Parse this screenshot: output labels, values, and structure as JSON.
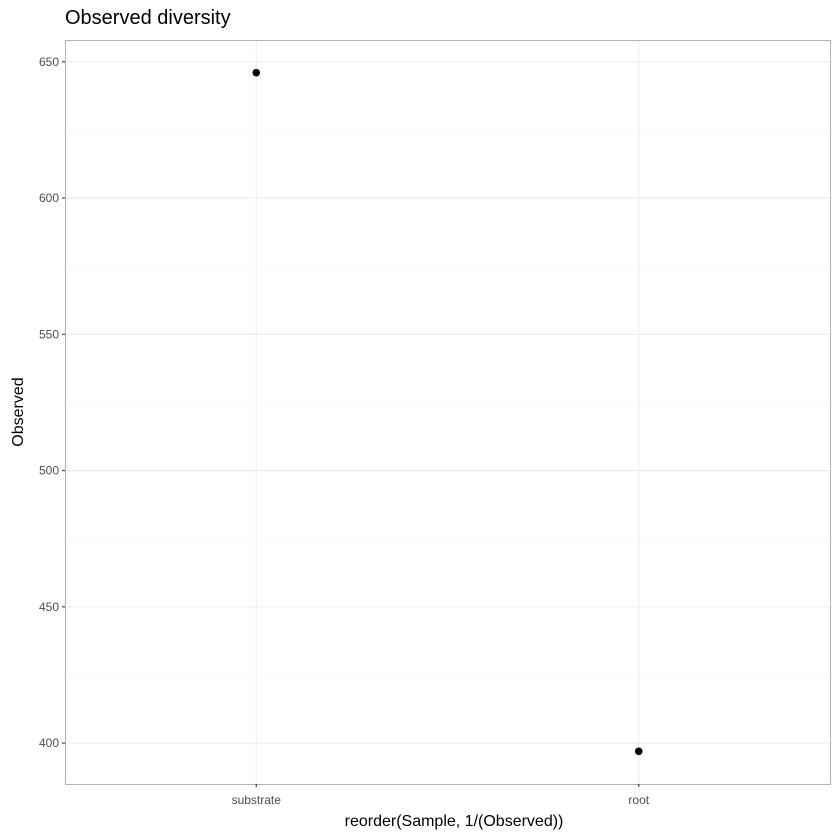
{
  "chart_data": {
    "type": "scatter",
    "title": "Observed diversity",
    "xlabel": "reorder(Sample, 1/(Observed))",
    "ylabel": "Observed",
    "categories": [
      "substrate",
      "root"
    ],
    "values": [
      646,
      397
    ],
    "ylim": [
      385,
      658
    ],
    "yticks": [
      400,
      450,
      500,
      550,
      600,
      650
    ],
    "grid": true,
    "point_color": "#000000"
  }
}
